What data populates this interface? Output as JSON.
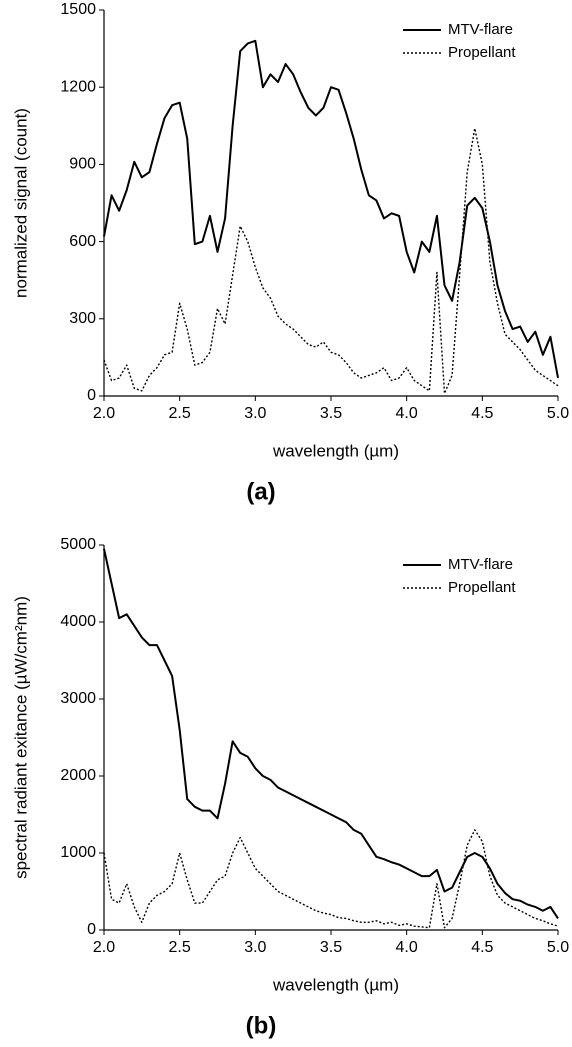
{
  "chart_data": [
    {
      "type": "line",
      "panel_label": "(a)",
      "xlabel": "wavelength (µm)",
      "ylabel": "normalized signal (count)",
      "legend": "upper right",
      "xlim": [
        2,
        5
      ],
      "ylim": [
        0,
        1500
      ],
      "xticks": [
        {
          "value": 2,
          "label": "2.0"
        },
        {
          "value": 2.5,
          "label": "2.5"
        },
        {
          "value": 3,
          "label": "3.0"
        },
        {
          "value": 3.5,
          "label": "3.5"
        },
        {
          "value": 4,
          "label": "4.0"
        },
        {
          "value": 4.5,
          "label": "4.5"
        },
        {
          "value": 5,
          "label": "5.0"
        }
      ],
      "yticks": [
        0,
        300,
        600,
        900,
        1200,
        1500
      ],
      "x": [
        2.0,
        2.05,
        2.1,
        2.15,
        2.2,
        2.25,
        2.3,
        2.35,
        2.4,
        2.45,
        2.5,
        2.55,
        2.6,
        2.65,
        2.7,
        2.75,
        2.8,
        2.85,
        2.9,
        2.95,
        3.0,
        3.05,
        3.1,
        3.15,
        3.2,
        3.25,
        3.3,
        3.35,
        3.4,
        3.45,
        3.5,
        3.55,
        3.6,
        3.65,
        3.7,
        3.75,
        3.8,
        3.85,
        3.9,
        3.95,
        4.0,
        4.05,
        4.1,
        4.15,
        4.2,
        4.25,
        4.3,
        4.35,
        4.4,
        4.45,
        4.5,
        4.55,
        4.6,
        4.65,
        4.7,
        4.75,
        4.8,
        4.85,
        4.9,
        4.95,
        5.0
      ],
      "series": [
        {
          "name": "MTV-flare",
          "color": "#000000",
          "linestyle": "solid",
          "values": [
            620,
            780,
            720,
            800,
            910,
            850,
            870,
            980,
            1080,
            1130,
            1140,
            1000,
            590,
            600,
            700,
            560,
            690,
            1050,
            1340,
            1370,
            1380,
            1200,
            1250,
            1220,
            1290,
            1250,
            1180,
            1120,
            1090,
            1120,
            1200,
            1190,
            1100,
            1000,
            880,
            780,
            760,
            690,
            710,
            700,
            560,
            480,
            600,
            560,
            700,
            430,
            370,
            520,
            740,
            770,
            730,
            600,
            430,
            330,
            260,
            270,
            210,
            250,
            160,
            230,
            70
          ]
        },
        {
          "name": "Propellant",
          "color": "#000000",
          "linestyle": "dotted",
          "values": [
            140,
            60,
            70,
            120,
            30,
            20,
            80,
            110,
            160,
            170,
            360,
            260,
            120,
            130,
            170,
            340,
            280,
            470,
            660,
            600,
            500,
            420,
            380,
            310,
            280,
            260,
            230,
            200,
            190,
            210,
            170,
            160,
            130,
            90,
            70,
            80,
            90,
            110,
            60,
            70,
            110,
            60,
            40,
            20,
            480,
            10,
            80,
            470,
            870,
            1040,
            900,
            520,
            360,
            240,
            210,
            180,
            140,
            100,
            80,
            60,
            40
          ]
        }
      ]
    },
    {
      "type": "line",
      "panel_label": "(b)",
      "xlabel": "wavelength (µm)",
      "ylabel": "spectral radiant exitance (µW/cm²nm)",
      "legend": "upper right",
      "xlim": [
        2,
        5
      ],
      "ylim": [
        0,
        5000
      ],
      "xticks": [
        {
          "value": 2,
          "label": "2.0"
        },
        {
          "value": 2.5,
          "label": "2.5"
        },
        {
          "value": 3,
          "label": "3.0"
        },
        {
          "value": 3.5,
          "label": "3.5"
        },
        {
          "value": 4,
          "label": "4.0"
        },
        {
          "value": 4.5,
          "label": "4.5"
        },
        {
          "value": 5,
          "label": "5.0"
        }
      ],
      "yticks": [
        0,
        1000,
        2000,
        3000,
        4000,
        5000
      ],
      "x": [
        2.0,
        2.05,
        2.1,
        2.15,
        2.2,
        2.25,
        2.3,
        2.35,
        2.4,
        2.45,
        2.5,
        2.55,
        2.6,
        2.65,
        2.7,
        2.75,
        2.8,
        2.85,
        2.9,
        2.95,
        3.0,
        3.05,
        3.1,
        3.15,
        3.2,
        3.25,
        3.3,
        3.35,
        3.4,
        3.45,
        3.5,
        3.55,
        3.6,
        3.65,
        3.7,
        3.75,
        3.8,
        3.85,
        3.9,
        3.95,
        4.0,
        4.05,
        4.1,
        4.15,
        4.2,
        4.25,
        4.3,
        4.35,
        4.4,
        4.45,
        4.5,
        4.55,
        4.6,
        4.65,
        4.7,
        4.75,
        4.8,
        4.85,
        4.9,
        4.95,
        5.0
      ],
      "series": [
        {
          "name": "MTV-flare",
          "color": "#000000",
          "linestyle": "solid",
          "values": [
            4950,
            4500,
            4050,
            4100,
            3950,
            3800,
            3700,
            3700,
            3500,
            3300,
            2600,
            1700,
            1600,
            1550,
            1550,
            1450,
            1900,
            2450,
            2300,
            2250,
            2100,
            2000,
            1950,
            1850,
            1800,
            1750,
            1700,
            1650,
            1600,
            1550,
            1500,
            1450,
            1400,
            1300,
            1250,
            1100,
            950,
            920,
            880,
            850,
            800,
            750,
            700,
            700,
            780,
            500,
            550,
            750,
            950,
            1000,
            950,
            800,
            600,
            480,
            400,
            380,
            330,
            300,
            250,
            300,
            150
          ]
        },
        {
          "name": "Propellant",
          "color": "#000000",
          "linestyle": "dotted",
          "values": [
            1000,
            400,
            350,
            600,
            300,
            100,
            350,
            450,
            500,
            600,
            1000,
            650,
            350,
            350,
            500,
            650,
            700,
            1000,
            1200,
            1000,
            800,
            700,
            600,
            500,
            450,
            400,
            350,
            300,
            250,
            220,
            200,
            160,
            150,
            120,
            100,
            100,
            120,
            80,
            100,
            60,
            80,
            50,
            40,
            30,
            600,
            30,
            150,
            600,
            1100,
            1300,
            1150,
            700,
            450,
            350,
            300,
            250,
            200,
            150,
            120,
            80,
            50
          ]
        }
      ]
    }
  ]
}
